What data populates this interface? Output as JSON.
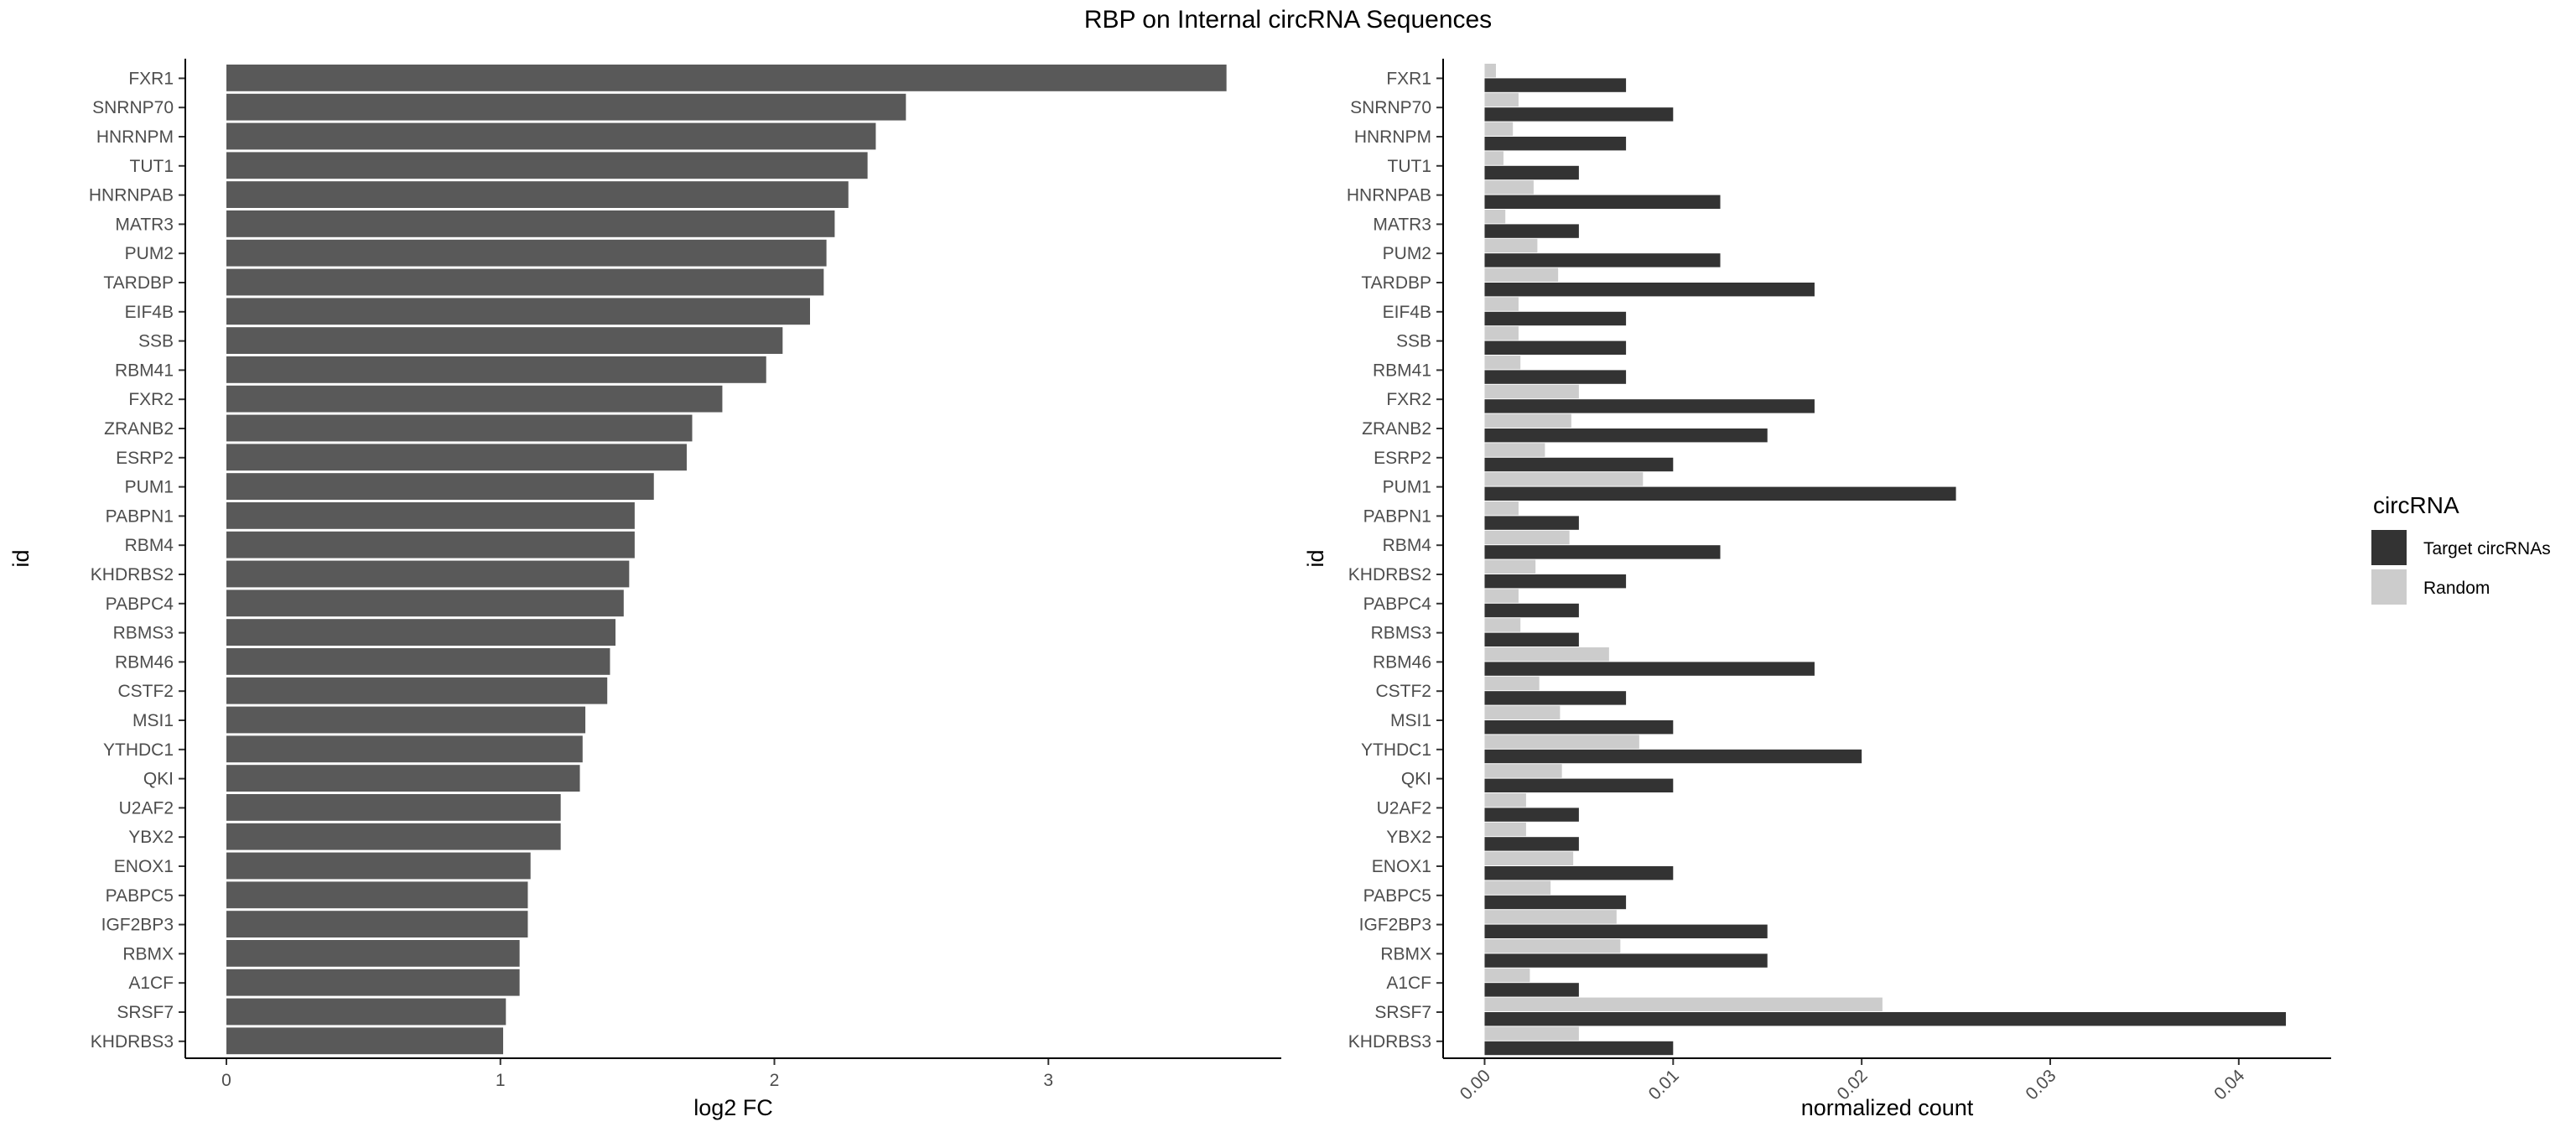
{
  "title": "RBP on Internal circRNA Sequences",
  "chart_data": [
    {
      "type": "bar",
      "orientation": "horizontal",
      "ylabel": "id",
      "xlabel": "log2 FC",
      "xlim": [
        -0.15,
        3.85
      ],
      "xticks": [
        "0",
        "1",
        "2",
        "3"
      ],
      "categories": [
        "FXR1",
        "SNRNP70",
        "HNRNPM",
        "TUT1",
        "HNRNPAB",
        "MATR3",
        "PUM2",
        "TARDBP",
        "EIF4B",
        "SSB",
        "RBM41",
        "FXR2",
        "ZRANB2",
        "ESRP2",
        "PUM1",
        "PABPN1",
        "RBM4",
        "KHDRBS2",
        "PABPC4",
        "RBMS3",
        "RBM46",
        "CSTF2",
        "MSI1",
        "YTHDC1",
        "QKI",
        "U2AF2",
        "YBX2",
        "ENOX1",
        "PABPC5",
        "IGF2BP3",
        "RBMX",
        "A1CF",
        "SRSF7",
        "KHDRBS3"
      ],
      "values": [
        3.65,
        2.48,
        2.37,
        2.34,
        2.27,
        2.22,
        2.19,
        2.18,
        2.13,
        2.03,
        1.97,
        1.81,
        1.7,
        1.68,
        1.56,
        1.49,
        1.49,
        1.47,
        1.45,
        1.42,
        1.4,
        1.39,
        1.31,
        1.3,
        1.29,
        1.22,
        1.22,
        1.11,
        1.1,
        1.1,
        1.07,
        1.07,
        1.02,
        1.01
      ],
      "color": "#595959",
      "grid": false
    },
    {
      "type": "bar",
      "orientation": "horizontal",
      "grouped": true,
      "ylabel": "id",
      "xlabel": "normalized count",
      "xlim": [
        -0.0022,
        0.0449
      ],
      "xticks": [
        "0.00",
        "0.01",
        "0.02",
        "0.03",
        "0.04"
      ],
      "categories": [
        "FXR1",
        "SNRNP70",
        "HNRNPM",
        "TUT1",
        "HNRNPAB",
        "MATR3",
        "PUM2",
        "TARDBP",
        "EIF4B",
        "SSB",
        "RBM41",
        "FXR2",
        "ZRANB2",
        "ESRP2",
        "PUM1",
        "PABPN1",
        "RBM4",
        "KHDRBS2",
        "PABPC4",
        "RBMS3",
        "RBM46",
        "CSTF2",
        "MSI1",
        "YTHDC1",
        "QKI",
        "U2AF2",
        "YBX2",
        "ENOX1",
        "PABPC5",
        "IGF2BP3",
        "RBMX",
        "A1CF",
        "SRSF7",
        "KHDRBS3"
      ],
      "legend": {
        "title": "circRNA",
        "position": "right",
        "entries": [
          {
            "label": "Target circRNAs",
            "color": "#333333"
          },
          {
            "label": "Random",
            "color": "#cccccc"
          }
        ]
      },
      "series": [
        {
          "name": "Target circRNAs",
          "color": "#333333",
          "values": [
            0.0075,
            0.01,
            0.0075,
            0.005,
            0.0125,
            0.005,
            0.0125,
            0.0175,
            0.0075,
            0.0075,
            0.0075,
            0.0175,
            0.015,
            0.01,
            0.025,
            0.005,
            0.0125,
            0.0075,
            0.005,
            0.005,
            0.0175,
            0.0075,
            0.01,
            0.02,
            0.01,
            0.005,
            0.005,
            0.01,
            0.0075,
            0.015,
            0.015,
            0.005,
            0.0425,
            0.01
          ]
        },
        {
          "name": "Random",
          "color": "#cccccc",
          "values": [
            0.0006,
            0.0018,
            0.0015,
            0.001,
            0.0026,
            0.0011,
            0.0028,
            0.0039,
            0.0018,
            0.0018,
            0.0019,
            0.005,
            0.0046,
            0.0032,
            0.0084,
            0.0018,
            0.0045,
            0.0027,
            0.0018,
            0.0019,
            0.0066,
            0.0029,
            0.004,
            0.0082,
            0.0041,
            0.0022,
            0.0022,
            0.0047,
            0.0035,
            0.007,
            0.0072,
            0.0024,
            0.0211,
            0.005
          ]
        }
      ],
      "grid": false
    }
  ]
}
